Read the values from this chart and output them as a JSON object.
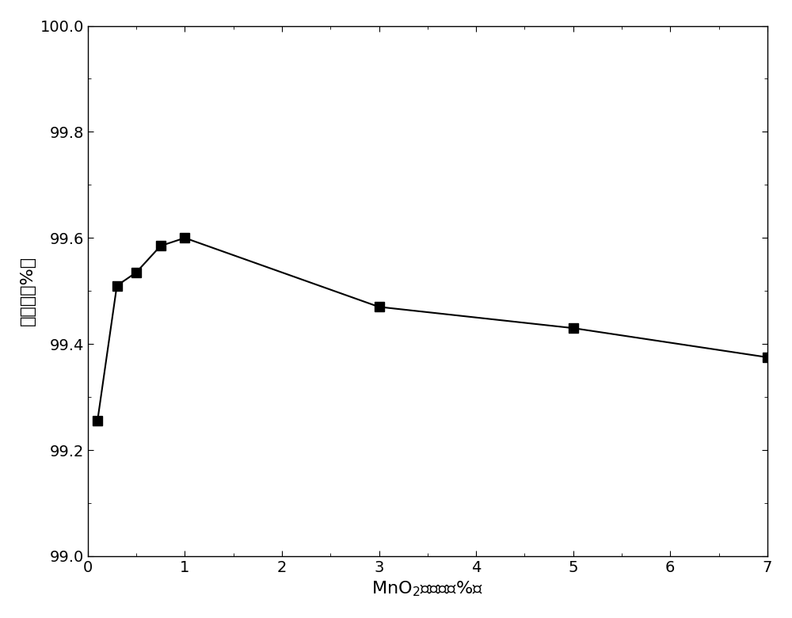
{
  "x": [
    0.1,
    0.3,
    0.5,
    0.75,
    1.0,
    3.0,
    5.0,
    7.0
  ],
  "y": [
    99.255,
    99.51,
    99.535,
    99.585,
    99.6,
    99.47,
    99.43,
    99.375
  ],
  "xlabel": "MnO$_2$担载量（%）",
  "ylabel": "降解率（%）",
  "xlim": [
    0,
    7
  ],
  "ylim": [
    99.0,
    100.0
  ],
  "xticks": [
    0,
    1,
    2,
    3,
    4,
    5,
    6,
    7
  ],
  "yticks": [
    99.0,
    99.2,
    99.4,
    99.6,
    99.8,
    100.0
  ],
  "line_color": "#000000",
  "marker": "s",
  "marker_color": "#000000",
  "marker_size": 8,
  "line_width": 1.5,
  "background_color": "#ffffff",
  "xlabel_fontsize": 16,
  "ylabel_fontsize": 16,
  "tick_fontsize": 14
}
